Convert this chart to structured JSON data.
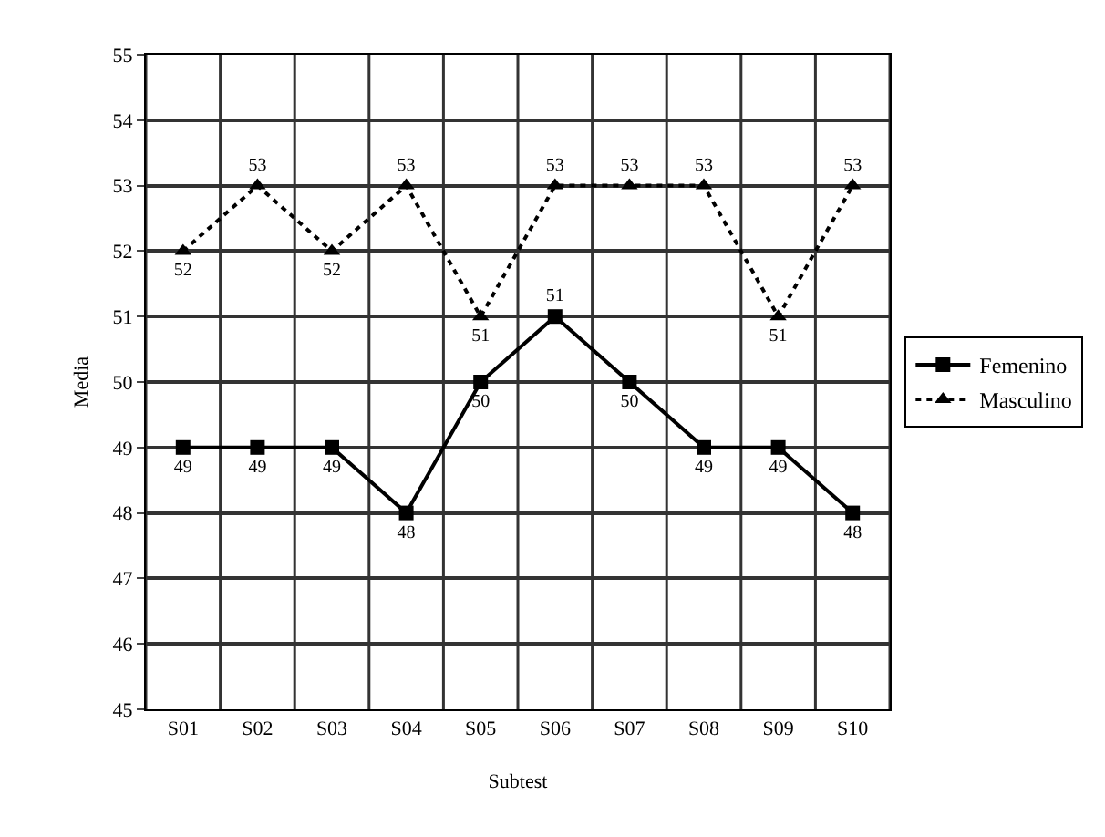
{
  "chart_data": {
    "type": "line",
    "xlabel": "Subtest",
    "ylabel": "Media",
    "categories": [
      "S01",
      "S02",
      "S03",
      "S04",
      "S05",
      "S06",
      "S07",
      "S08",
      "S09",
      "S10"
    ],
    "series": [
      {
        "name": "Femenino",
        "color": "#000000",
        "marker": "square",
        "line_style": "solid",
        "values": [
          49,
          49,
          49,
          48,
          50,
          51,
          50,
          49,
          49,
          48
        ]
      },
      {
        "name": "Masculino",
        "color": "#000000",
        "marker": "triangle",
        "line_style": "dotted",
        "values": [
          52,
          53,
          52,
          53,
          51,
          53,
          53,
          53,
          51,
          53
        ]
      }
    ],
    "ylim": [
      45,
      55
    ],
    "yticks": [
      45,
      46,
      47,
      48,
      49,
      50,
      51,
      52,
      53,
      54,
      55
    ],
    "grid": true,
    "legend": "right",
    "data_labels": true
  }
}
